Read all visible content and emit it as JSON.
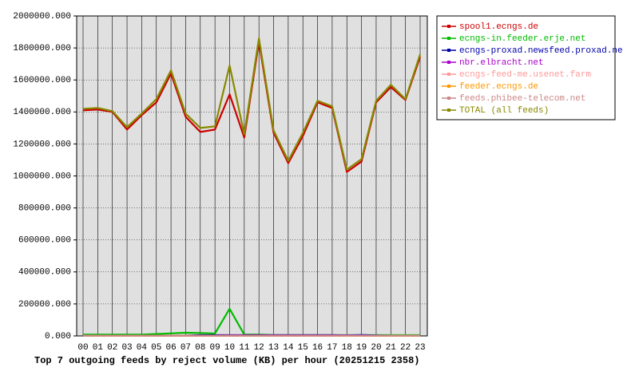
{
  "chart_data": {
    "type": "line",
    "title": "Top 7 outgoing feeds by reject volume (KB) per hour (20251215 2358)",
    "categories": [
      "00",
      "01",
      "02",
      "03",
      "04",
      "05",
      "06",
      "07",
      "08",
      "09",
      "10",
      "11",
      "12",
      "13",
      "14",
      "15",
      "16",
      "17",
      "18",
      "19",
      "20",
      "21",
      "22",
      "23"
    ],
    "series": [
      {
        "name": "spool1.ecngs.de",
        "color": "#cc0000",
        "values": [
          1410000,
          1415000,
          1400000,
          1290000,
          1380000,
          1460000,
          1640000,
          1370000,
          1275000,
          1290000,
          1510000,
          1240000,
          1840000,
          1270000,
          1080000,
          1250000,
          1460000,
          1425000,
          1025000,
          1090000,
          1460000,
          1555000,
          1475000,
          1745000
        ]
      },
      {
        "name": "ecngs-in.feeder.erje.net",
        "color": "#00bb00",
        "values": [
          8000,
          8000,
          8000,
          8000,
          8000,
          12000,
          16000,
          20000,
          18000,
          15000,
          170000,
          8000,
          8000,
          5000,
          5000,
          5000,
          5000,
          5000,
          5000,
          5000,
          5000,
          5000,
          5000,
          5000
        ]
      },
      {
        "name": "ecngs-proxad.newsfeed.proxad.net",
        "color": "#0000aa",
        "values": [
          2000,
          2000,
          2000,
          2000,
          2000,
          2000,
          2000,
          2000,
          5000,
          5000,
          5000,
          5000,
          5000,
          5000,
          5000,
          5000,
          5000,
          5000,
          4000,
          6000,
          3000,
          2000,
          2000,
          2000
        ]
      },
      {
        "name": "nbr.elbracht.net",
        "color": "#aa00cc",
        "values": [
          1000,
          1000,
          1000,
          1000,
          1000,
          1000,
          1000,
          1000,
          1000,
          1000,
          3000,
          3000,
          3000,
          3000,
          3000,
          3000,
          3000,
          3000,
          3000,
          3000,
          1000,
          1000,
          1000,
          1000
        ]
      },
      {
        "name": "ecngs-feed-me.usenet.farm",
        "color": "#ff9999",
        "values": [
          1000,
          1000,
          1000,
          1000,
          1000,
          1000,
          1000,
          1000,
          1000,
          1000,
          1000,
          1000,
          1000,
          1000,
          1000,
          1000,
          1000,
          1000,
          2000,
          2000,
          2000,
          2000,
          2000,
          2000
        ]
      },
      {
        "name": "feeder.ecngs.de",
        "color": "#ff9900",
        "values": [
          1000,
          1000,
          1000,
          1000,
          1000,
          1000,
          1000,
          1000,
          1000,
          1000,
          1000,
          1000,
          1000,
          1000,
          1000,
          1000,
          1000,
          1000,
          1000,
          1000,
          1000,
          1000,
          1000,
          1000
        ]
      },
      {
        "name": "feeds.phibee-telecom.net",
        "color": "#cc8888",
        "values": [
          1000,
          1000,
          1000,
          1000,
          1000,
          1000,
          1000,
          1000,
          1000,
          1000,
          1000,
          1000,
          1000,
          1000,
          1000,
          1000,
          1000,
          1000,
          2000,
          2000,
          2000,
          2000,
          2000,
          2000
        ]
      },
      {
        "name": "TOTAL (all feeds)",
        "color": "#888800",
        "values": [
          1420000,
          1425000,
          1405000,
          1305000,
          1390000,
          1480000,
          1660000,
          1390000,
          1300000,
          1310000,
          1690000,
          1260000,
          1860000,
          1285000,
          1095000,
          1270000,
          1470000,
          1435000,
          1040000,
          1105000,
          1470000,
          1570000,
          1480000,
          1760000
        ]
      }
    ],
    "ylim": [
      0,
      2000000
    ],
    "yticks": [
      {
        "value": 0,
        "label": "0.000"
      },
      {
        "value": 200000,
        "label": "200000.000"
      },
      {
        "value": 400000,
        "label": "400000.000"
      },
      {
        "value": 600000,
        "label": "600000.000"
      },
      {
        "value": 800000,
        "label": "800000.000"
      },
      {
        "value": 1000000,
        "label": "1000000.000"
      },
      {
        "value": 1200000,
        "label": "1200000.000"
      },
      {
        "value": 1400000,
        "label": "1400000.000"
      },
      {
        "value": 1600000,
        "label": "1600000.000"
      },
      {
        "value": 1800000,
        "label": "1800000.000"
      },
      {
        "value": 2000000,
        "label": "2000000.000"
      }
    ],
    "grid": true,
    "legend": "right"
  }
}
